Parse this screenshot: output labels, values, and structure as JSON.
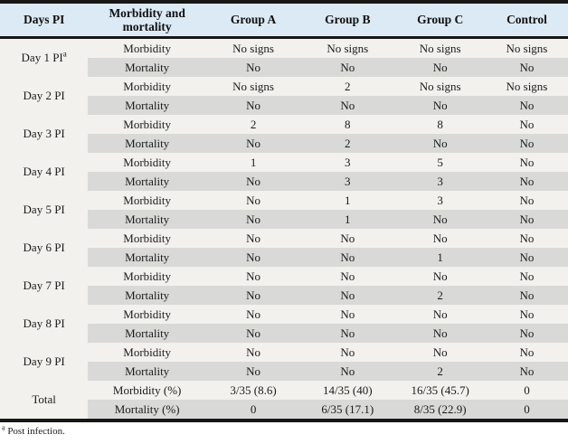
{
  "table": {
    "columns": [
      "Days PI",
      "Morbidity and mortality",
      "Group A",
      "Group B",
      "Group C",
      "Control"
    ],
    "rows": [
      {
        "day": "Day 1 PI",
        "day_sup": "a",
        "morbidity_label": "Morbidity",
        "mortality_label": "Mortality",
        "morbidity": [
          "No signs",
          "No signs",
          "No signs",
          "No signs"
        ],
        "mortality": [
          "No",
          "No",
          "No",
          "No"
        ]
      },
      {
        "day": "Day 2 PI",
        "morbidity_label": "Morbidity",
        "mortality_label": "Mortality",
        "morbidity": [
          "No signs",
          "2",
          "No signs",
          "No signs"
        ],
        "mortality": [
          "No",
          "No",
          "No",
          "No"
        ]
      },
      {
        "day": "Day 3 PI",
        "morbidity_label": "Morbidity",
        "mortality_label": "Mortality",
        "morbidity": [
          "2",
          "8",
          "8",
          "No"
        ],
        "mortality": [
          "No",
          "2",
          "No",
          "No"
        ]
      },
      {
        "day": "Day 4 PI",
        "morbidity_label": "Morbidity",
        "mortality_label": "Mortality",
        "morbidity": [
          "1",
          "3",
          "5",
          "No"
        ],
        "mortality": [
          "No",
          "3",
          "3",
          "No"
        ]
      },
      {
        "day": "Day 5 PI",
        "morbidity_label": "Morbidity",
        "mortality_label": "Mortality",
        "morbidity": [
          "No",
          "1",
          "3",
          "No"
        ],
        "mortality": [
          "No",
          "1",
          "No",
          "No"
        ]
      },
      {
        "day": "Day 6 PI",
        "morbidity_label": "Morbidity",
        "mortality_label": "Mortality",
        "morbidity": [
          "No",
          "No",
          "No",
          "No"
        ],
        "mortality": [
          "No",
          "No",
          "1",
          "No"
        ]
      },
      {
        "day": "Day 7 PI",
        "morbidity_label": "Morbidity",
        "mortality_label": "Mortality",
        "morbidity": [
          "No",
          "No",
          "No",
          "No"
        ],
        "mortality": [
          "No",
          "No",
          "2",
          "No"
        ]
      },
      {
        "day": "Day 8 PI",
        "morbidity_label": "Morbidity",
        "mortality_label": "Mortality",
        "morbidity": [
          "No",
          "No",
          "No",
          "No"
        ],
        "mortality": [
          "No",
          "No",
          "No",
          "No"
        ]
      },
      {
        "day": "Day 9 PI",
        "morbidity_label": "Morbidity",
        "mortality_label": "Mortality",
        "morbidity": [
          "No",
          "No",
          "No",
          "No"
        ],
        "mortality": [
          "No",
          "No",
          "2",
          "No"
        ]
      },
      {
        "day": "Total",
        "morbidity_label": "Morbidity (%)",
        "mortality_label": "Mortality (%)",
        "morbidity": [
          "3/35 (8.6)",
          "14/35 (40)",
          "16/35 (45.7)",
          "0"
        ],
        "mortality": [
          "0",
          "6/35 (17.1)",
          "8/35 (22.9)",
          "0"
        ]
      }
    ]
  },
  "footnote": {
    "sup": "a",
    "text": "Post infection."
  },
  "colors": {
    "header_bg": "#dceaf6",
    "row_light": "#f2f1ed",
    "row_gray": "#d9d9d7",
    "border": "#161616"
  }
}
